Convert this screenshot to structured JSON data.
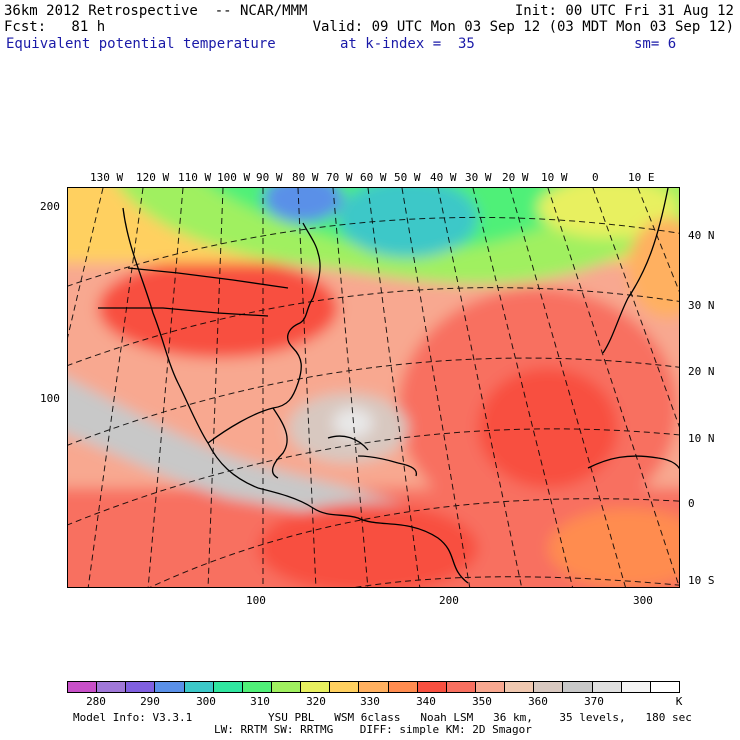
{
  "header": {
    "line1_left": "36km 2012 Retrospective  -- NCAR/MMM",
    "line1_right": "Init: 00 UTC Fri 31 Aug 12",
    "line2_left": "Fcst:   81 h",
    "line2_right": "Valid: 09 UTC Mon 03 Sep 12 (03 MDT Mon 03 Sep 12)",
    "field": "Equivalent potential temperature",
    "level": "at k-index =  35",
    "smoothing": "sm= 6"
  },
  "map": {
    "longitude_labels": [
      "130 W",
      "120 W",
      "110 W",
      "100 W",
      "90 W",
      "80 W",
      "70 W",
      "60 W",
      "50 W",
      "40 W",
      "30 W",
      "20 W",
      "10 W",
      "0",
      "10 E"
    ],
    "latitude_labels": [
      "40 N",
      "30 N",
      "20 N",
      "10 N",
      "0",
      "10 S"
    ],
    "grid_y_labels": [
      "200",
      "100"
    ],
    "grid_x_labels": [
      "100",
      "200",
      "300"
    ]
  },
  "colorbar": {
    "colors": [
      "#c850c8",
      "#a078d8",
      "#8060e0",
      "#5a90e8",
      "#3cc8c8",
      "#30e6a0",
      "#50f078",
      "#a0f060",
      "#e8f060",
      "#ffd060",
      "#ffb060",
      "#ff8c50",
      "#f85040",
      "#f87060",
      "#f8a890",
      "#f0c8b0",
      "#d8c8c0",
      "#c8c8c8",
      "#e0e0e0",
      "#f4f4f4",
      "#ffffff"
    ],
    "labels": [
      "280",
      "290",
      "300",
      "310",
      "320",
      "330",
      "340",
      "350",
      "360",
      "370"
    ],
    "unit": "K"
  },
  "footer": {
    "line1_left": "Model Info: V3.3.1",
    "line1_right": "YSU PBL   WSM 6class   Noah LSM   36 km,    35 levels,   180 sec",
    "line2": "LW: RRTM SW: RRTMG    DIFF: simple KM: 2D Smagor"
  }
}
